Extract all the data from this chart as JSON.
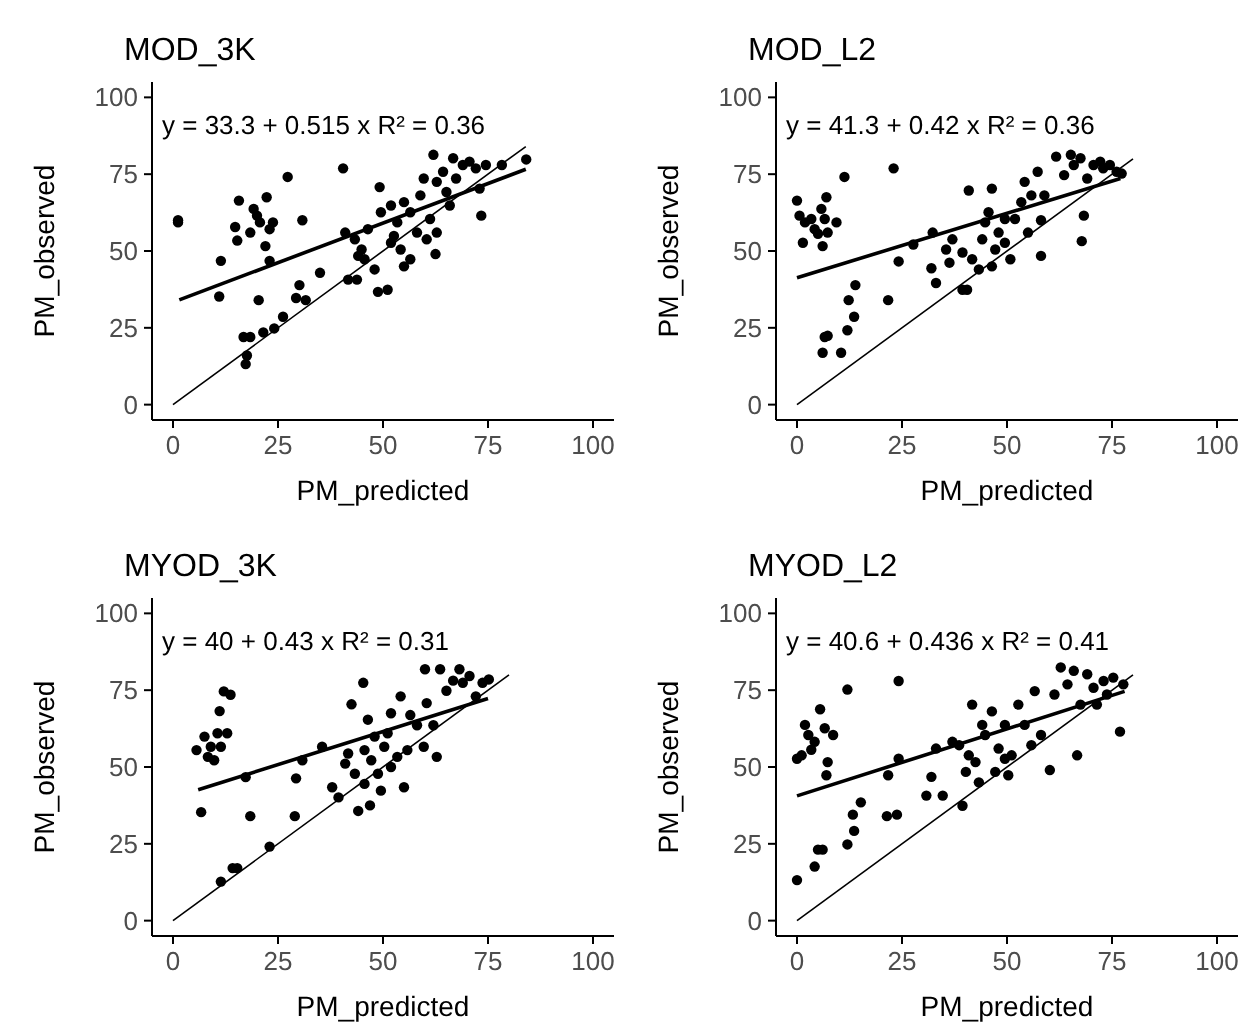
{
  "chart_data": [
    {
      "type": "scatter",
      "title": "MOD_3K",
      "xlabel": "PM_predicted",
      "ylabel": "PM_observed",
      "xlim": [
        -5,
        105
      ],
      "ylim": [
        -5,
        105
      ],
      "xticks": [
        0,
        25,
        50,
        75,
        100
      ],
      "yticks": [
        0,
        25,
        50,
        75,
        100
      ],
      "grid": false,
      "annotations": [
        "y = 33.3 + 0.515 x   R² = 0.36"
      ],
      "series": [
        {
          "marker": "circle",
          "color": "#000000",
          "x": [
            1.2,
            1.2,
            11.4,
            11,
            15.7,
            14.8,
            15.3,
            19.2,
            20,
            20.7,
            18.4,
            22.3,
            23,
            22,
            23.8,
            23,
            20.4,
            16.8,
            17.6,
            17.3,
            18.4,
            21.5,
            24.1,
            26.2,
            27.3,
            30.8,
            29.3,
            30.1,
            31.6,
            35,
            40.5,
            41,
            41.7,
            43.8,
            43.3,
            44.9,
            45.6,
            48,
            48.8,
            51.1,
            49.2,
            49.5,
            51.9,
            53.4,
            54.2,
            51.9,
            56.5,
            55,
            58.1,
            58.9,
            56.5,
            61.2,
            60.4,
            62.5,
            62.8,
            62,
            64.3,
            62.8,
            65.1,
            66.7,
            67.4,
            69,
            70.6,
            72.1,
            74.5,
            73,
            73.4,
            78.3,
            84.1,
            59.7,
            55,
            52.6,
            65.9,
            46.4,
            44.1
          ],
          "values": [
            59.3,
            60,
            46.8,
            35.2,
            66.4,
            57.8,
            53.4,
            63.7,
            61.5,
            59.3,
            56,
            67.5,
            57.1,
            51.6,
            59.3,
            46.8,
            34,
            22,
            16,
            13.2,
            22,
            23.5,
            24.8,
            28.6,
            74.1,
            60,
            34.7,
            38.9,
            34,
            42.9,
            76.9,
            56,
            40.7,
            40.7,
            53.8,
            50.5,
            47.3,
            44,
            36.7,
            37.4,
            70.8,
            62.6,
            64.8,
            59.3,
            50.5,
            52.7,
            47.3,
            45,
            56,
            68.1,
            62.6,
            60.4,
            53.8,
            49,
            56,
            81.3,
            75.8,
            72.5,
            69.2,
            80.2,
            73.6,
            78,
            79.1,
            76.9,
            78,
            70.3,
            61.5,
            78,
            79.8,
            73.6,
            65.9,
            54.9,
            64.8,
            57.1,
            48.4
          ]
        },
        {
          "type": "line",
          "color": "#000000",
          "x": [
            1.5,
            84
          ],
          "values": [
            34.1,
            76.6
          ]
        },
        {
          "type": "line",
          "color": "#000000",
          "x": [
            0,
            84
          ],
          "values": [
            0,
            84
          ]
        }
      ]
    },
    {
      "type": "scatter",
      "title": "MOD_L2",
      "xlabel": "PM_predicted",
      "ylabel": "PM_observed",
      "xlim": [
        -5,
        105
      ],
      "ylim": [
        -5,
        105
      ],
      "xticks": [
        0,
        25,
        50,
        75,
        100
      ],
      "yticks": [
        0,
        25,
        50,
        75,
        100
      ],
      "grid": false,
      "annotations": [
        "y = 41.3 + 0.42 x   R² = 0.36"
      ],
      "series": [
        {
          "marker": "circle",
          "color": "#000000",
          "x": [
            0,
            0.6,
            1.9,
            1.4,
            3.4,
            4.2,
            5.8,
            7,
            6.6,
            5,
            7.3,
            6.1,
            9.4,
            11.3,
            6.6,
            7.3,
            6.1,
            10.5,
            12,
            13.6,
            12.3,
            13.9,
            21.7,
            23,
            24.2,
            27.7,
            32,
            33.1,
            32.3,
            36.3,
            39.4,
            40.5,
            40.9,
            39.4,
            41.7,
            43.3,
            44.1,
            45.6,
            46.4,
            47.2,
            48,
            49.5,
            50.8,
            51.9,
            53.4,
            54.2,
            55,
            57.3,
            58.1,
            58.1,
            58.9,
            61.7,
            63.6,
            65.2,
            65.9,
            67.5,
            68.3,
            67.8,
            69.1,
            70.6,
            72.2,
            72.9,
            74.5,
            76.1,
            77.3,
            55.8,
            44.8,
            37,
            35.5,
            49.5,
            46.4
          ],
          "values": [
            66.4,
            61.5,
            59.3,
            52.7,
            60.4,
            57.1,
            63.7,
            67.5,
            60.4,
            55.6,
            56,
            51.6,
            59.3,
            74.1,
            22,
            22.4,
            16.9,
            16.9,
            24.2,
            28.6,
            34,
            38.9,
            34,
            76.9,
            46.6,
            52.1,
            44.4,
            39.6,
            56,
            46.2,
            37.4,
            37.4,
            69.7,
            49.5,
            47.3,
            44,
            53.8,
            62.6,
            70.3,
            50.5,
            56,
            60.4,
            47.3,
            60.4,
            65.9,
            72.5,
            56,
            75.8,
            48.4,
            60,
            68.1,
            80.7,
            74.7,
            81.3,
            78,
            80.2,
            61.5,
            53.2,
            73.6,
            78,
            79.1,
            76.9,
            78,
            75.8,
            75.2,
            68.1,
            59.3,
            53.8,
            50.5,
            52.7,
            45
          ]
        },
        {
          "type": "line",
          "color": "#000000",
          "x": [
            0,
            77
          ],
          "values": [
            41.3,
            73.6
          ]
        },
        {
          "type": "line",
          "color": "#000000",
          "x": [
            0,
            80
          ],
          "values": [
            0,
            80
          ]
        }
      ]
    },
    {
      "type": "scatter",
      "title": "MYOD_3K",
      "xlabel": "PM_predicted",
      "ylabel": "PM_observed",
      "xlim": [
        -5,
        105
      ],
      "ylim": [
        -5,
        105
      ],
      "xticks": [
        0,
        25,
        50,
        75,
        100
      ],
      "yticks": [
        0,
        25,
        50,
        75,
        100
      ],
      "grid": false,
      "annotations": [
        "y = 40 + 0.43 x   R² = 0.31"
      ],
      "series": [
        {
          "marker": "circle",
          "color": "#000000",
          "x": [
            5.6,
            6.7,
            7.5,
            8.3,
            9,
            9.8,
            10.6,
            11.1,
            12.1,
            13.7,
            11.4,
            12.9,
            11.4,
            14.2,
            15.3,
            17.3,
            18.4,
            23,
            29,
            29.3,
            30.8,
            35.5,
            37.9,
            39.4,
            42.5,
            41.7,
            44.1,
            46.9,
            45.6,
            43.3,
            45.3,
            46.4,
            47.2,
            48.8,
            49.5,
            50.3,
            51.1,
            51.9,
            54.2,
            55,
            55.8,
            56.5,
            58.1,
            59.7,
            60,
            60.4,
            62,
            62.8,
            63.6,
            65.1,
            66.7,
            68.2,
            69,
            70.6,
            72.1,
            73.7,
            75.2,
            53.4,
            48,
            41,
            51.9,
            45.6
          ],
          "values": [
            55.5,
            35.3,
            59.9,
            53.3,
            56.6,
            52.2,
            61,
            68.2,
            74.6,
            73.5,
            56.6,
            61,
            12.7,
            17.1,
            17.1,
            46.7,
            34,
            24.1,
            34,
            46.3,
            52.2,
            56.6,
            43.4,
            40.1,
            70.4,
            54.4,
            35.7,
            37.5,
            44.5,
            47.8,
            77.4,
            65.4,
            52.2,
            47.8,
            42.3,
            56.6,
            61,
            67.5,
            73,
            43.4,
            55.5,
            66.9,
            63.6,
            56.6,
            81.8,
            70.8,
            63.6,
            53.3,
            81.8,
            74.8,
            78.1,
            81.8,
            77.4,
            79.6,
            73,
            77.4,
            78.5,
            53.3,
            59.9,
            51.1,
            50,
            55.5
          ]
        },
        {
          "type": "line",
          "color": "#000000",
          "x": [
            6,
            75
          ],
          "values": [
            42.6,
            72.3
          ]
        },
        {
          "type": "line",
          "color": "#000000",
          "x": [
            0,
            80
          ],
          "values": [
            0,
            80
          ]
        }
      ]
    },
    {
      "type": "scatter",
      "title": "MYOD_L2",
      "xlabel": "PM_predicted",
      "ylabel": "PM_observed",
      "xlim": [
        -5,
        105
      ],
      "ylim": [
        -5,
        105
      ],
      "xticks": [
        0,
        25,
        50,
        75,
        100
      ],
      "yticks": [
        0,
        25,
        50,
        75,
        100
      ],
      "grid": false,
      "annotations": [
        "y = 40.6 + 0.436 x   R² = 0.41"
      ],
      "series": [
        {
          "marker": "circle",
          "color": "#000000",
          "x": [
            0,
            0,
            1.1,
            1.9,
            2.7,
            3.4,
            4.2,
            5.5,
            6.6,
            7.3,
            7,
            8.6,
            4.2,
            5,
            6.1,
            12,
            13.6,
            13.3,
            15.2,
            12,
            21.7,
            21.4,
            23.8,
            24.2,
            24.2,
            30.8,
            32,
            33.1,
            34.7,
            37,
            39.4,
            40.2,
            41.7,
            42.5,
            43.3,
            44.8,
            46.4,
            47.2,
            48,
            49.5,
            50.3,
            51.1,
            52.7,
            54.2,
            55.8,
            56.6,
            58.1,
            60.2,
            61.3,
            62.8,
            64.4,
            66.7,
            65.9,
            67.5,
            69.1,
            70.6,
            71.4,
            73,
            73.8,
            75.3,
            76.9,
            77.7,
            44.1,
            38.6,
            49.5,
            40.9
          ],
          "values": [
            13.2,
            52.7,
            53.8,
            63.7,
            60.4,
            55.6,
            58.2,
            68.8,
            62.6,
            51.6,
            47.3,
            60.4,
            17.6,
            23.1,
            23.1,
            24.8,
            29.2,
            34.5,
            38.5,
            75.2,
            47.3,
            34,
            34.5,
            52.7,
            78,
            40.7,
            46.8,
            56,
            40.7,
            58.2,
            37.4,
            48.4,
            70.3,
            51.6,
            45,
            60.4,
            68.1,
            48.4,
            56,
            63.7,
            47.3,
            53.8,
            70.3,
            63.7,
            57.1,
            74.7,
            60.4,
            49,
            73.6,
            82.4,
            76.9,
            53.8,
            81.3,
            70.3,
            80.2,
            75.8,
            70.3,
            78,
            73.6,
            79.1,
            61.5,
            76.9,
            63.7,
            57.1,
            52.7,
            53.8
          ]
        },
        {
          "type": "line",
          "color": "#000000",
          "x": [
            0,
            78
          ],
          "values": [
            40.6,
            74.6
          ]
        },
        {
          "type": "line",
          "color": "#000000",
          "x": [
            0,
            80
          ],
          "values": [
            0,
            80
          ]
        }
      ]
    }
  ]
}
